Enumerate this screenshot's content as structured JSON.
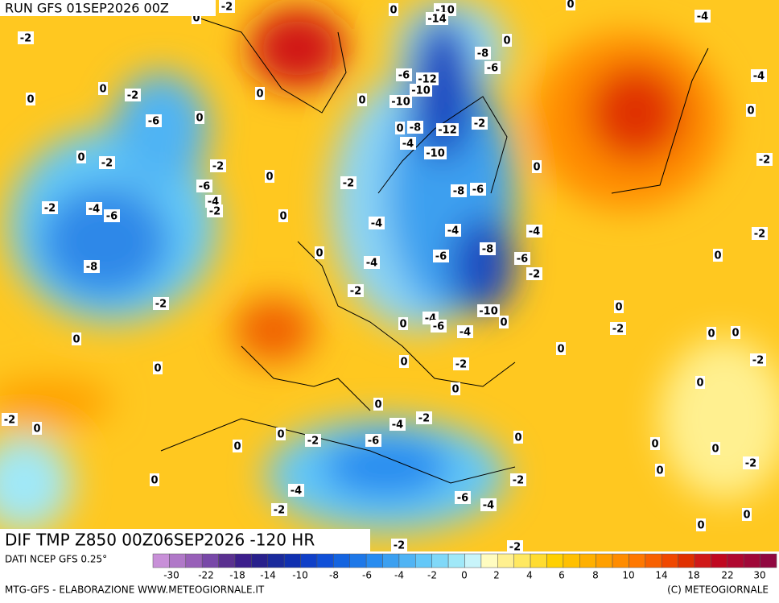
{
  "header": {
    "run": "RUN GFS 01SEP2026 00Z"
  },
  "map": {
    "labels": [
      -2,
      0,
      -10,
      -14,
      0,
      -4,
      -2,
      0,
      -8,
      -6,
      0,
      -6,
      -12,
      -10,
      -4,
      0,
      -2,
      0,
      0,
      0,
      -10,
      -6,
      0,
      0,
      -8,
      -12,
      -2,
      0,
      -4,
      -10,
      0,
      -2,
      -2,
      0,
      -2,
      0,
      -6,
      -2,
      -8,
      -6,
      -4,
      -2,
      -4,
      -6,
      -2,
      0,
      -4,
      -4,
      -4,
      -2,
      0,
      -6,
      -8,
      -6,
      0,
      -8,
      -4,
      -2,
      -2,
      -2,
      0,
      -10,
      -4,
      0,
      -6,
      -4,
      0,
      -2,
      0,
      0,
      0,
      0,
      -2,
      0,
      -2,
      0,
      0,
      0,
      -4,
      -2,
      0,
      -2,
      0,
      0,
      -2,
      -6,
      0,
      0,
      0,
      0,
      -2,
      0,
      -2,
      0,
      -4,
      -6,
      -4,
      -2,
      0,
      0,
      -2,
      -2
    ]
  },
  "footer": {
    "title": "DIF TMP Z850 00Z06SEP2026 -120 HR",
    "source": "DATI NCEP GFS 0.25°",
    "credit": "MTG-GFS - ELABORAZIONE WWW.METEOGIORNALE.IT",
    "copyright": "(C) METEOGIORNALE"
  },
  "colorbar": {
    "colors": [
      "#c890d8",
      "#b078c8",
      "#9860b8",
      "#7848a8",
      "#5a3090",
      "#3c1e8c",
      "#28208c",
      "#1a2a9c",
      "#1030b0",
      "#1040c8",
      "#1050d8",
      "#1464e0",
      "#1e78e8",
      "#288cf0",
      "#3ca0f0",
      "#50b4f4",
      "#64c8f8",
      "#80d8f8",
      "#a0e8f8",
      "#c8f4fa",
      "#fffcc0",
      "#fff090",
      "#ffe860",
      "#ffdc30",
      "#ffd000",
      "#ffc000",
      "#ffb000",
      "#ffa000",
      "#ff8c00",
      "#ff7800",
      "#f86000",
      "#f04800",
      "#e03000",
      "#d01818",
      "#c00820",
      "#b00830",
      "#a00838",
      "#900840"
    ],
    "ticks": [
      -30,
      -22,
      -18,
      -14,
      -10,
      -8,
      -6,
      -4,
      -2,
      0,
      2,
      4,
      6,
      8,
      10,
      14,
      18,
      22,
      30
    ]
  }
}
